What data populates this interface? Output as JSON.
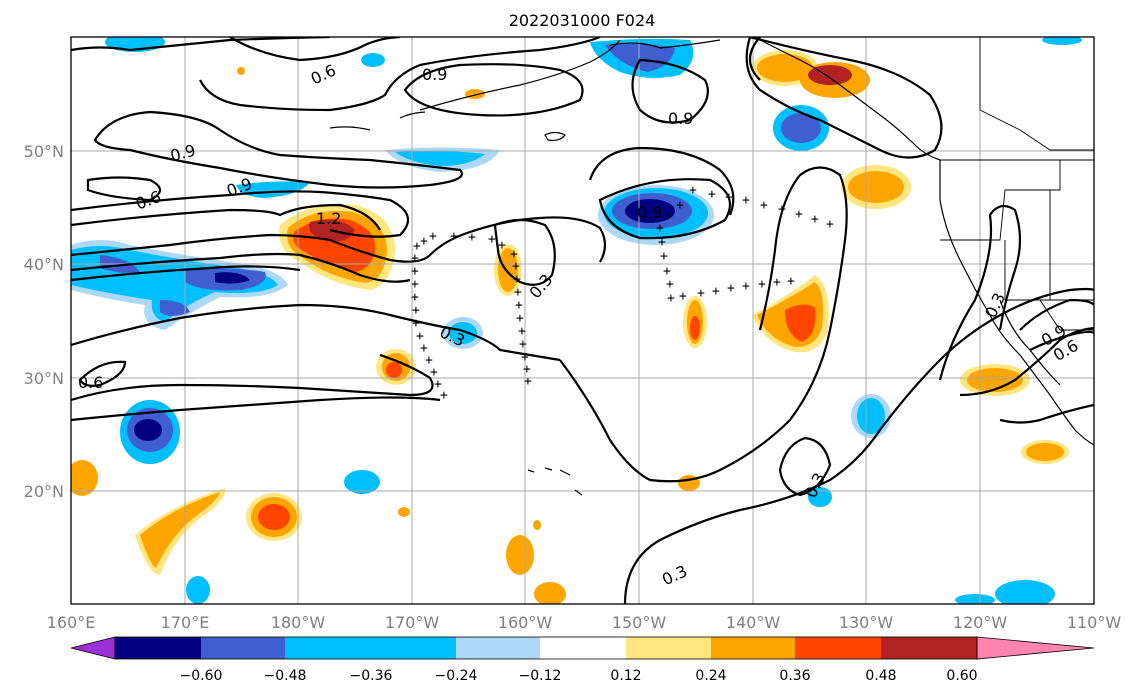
{
  "title": "2022031000 F024",
  "axes": {
    "x_ticks": [
      "160°E",
      "170°E",
      "180°W",
      "170°W",
      "160°W",
      "150°W",
      "140°W",
      "130°W",
      "120°W",
      "110°W"
    ],
    "y_ticks": [
      "50°N",
      "40°N",
      "30°N",
      "20°N"
    ]
  },
  "colorbar": {
    "labels": [
      "−0.60",
      "−0.48",
      "−0.36",
      "−0.24",
      "−0.12",
      "0.12",
      "0.24",
      "0.36",
      "0.48",
      "0.60"
    ],
    "colors": [
      "#9b30d4",
      "#000080",
      "#3f5fd0",
      "#00bfff",
      "#add8f5",
      "#ffffff",
      "#ffe680",
      "#ffa500",
      "#ff4500",
      "#b22222",
      "#ff85b0"
    ]
  },
  "contour_labels": [
    {
      "text": "0.6"
    },
    {
      "text": "0.9"
    },
    {
      "text": "0.9"
    },
    {
      "text": "0.9"
    },
    {
      "text": "0.6"
    },
    {
      "text": "0.9"
    },
    {
      "text": "1.2"
    },
    {
      "text": "0.6"
    },
    {
      "text": "0.3"
    },
    {
      "text": "0.3"
    },
    {
      "text": "0.9"
    },
    {
      "text": "0.3"
    },
    {
      "text": "0.3"
    },
    {
      "text": "0.3"
    },
    {
      "text": "0.9"
    },
    {
      "text": "0.6"
    }
  ],
  "chart_data": {
    "type": "heatmap",
    "title": "2022031000 F024",
    "lon_range": [
      160,
      250
    ],
    "lat_range": [
      10,
      60
    ],
    "color_levels": [
      -0.6,
      -0.48,
      -0.36,
      -0.24,
      -0.12,
      0.12,
      0.24,
      0.36,
      0.48,
      0.6
    ],
    "contour_levels": [
      0.3,
      0.6,
      0.9,
      1.2
    ],
    "grid": true,
    "colorbar_placement": "bottom"
  }
}
